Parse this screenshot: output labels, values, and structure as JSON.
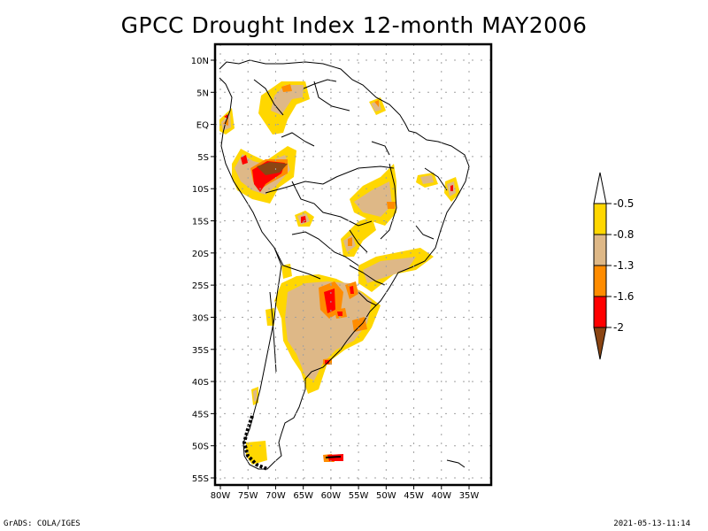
{
  "title": "GPCC Drought Index 12-month MAY2006",
  "colors": {
    "yellow": "#ffd700",
    "tan": "#deb887",
    "orange": "#ff8c00",
    "red": "#ff0000",
    "brown": "#8b4513",
    "land_outline": "#000000",
    "grid": "#a0a0a0"
  },
  "map": {
    "lon_range_west": [
      80,
      35
    ],
    "lat_range": [
      10,
      -55
    ],
    "lat_ticks": [
      {
        "value": 10,
        "label": "10N"
      },
      {
        "value": 5,
        "label": "5N"
      },
      {
        "value": 0,
        "label": "EQ"
      },
      {
        "value": -5,
        "label": "5S"
      },
      {
        "value": -10,
        "label": "10S"
      },
      {
        "value": -15,
        "label": "15S"
      },
      {
        "value": -20,
        "label": "20S"
      },
      {
        "value": -25,
        "label": "25S"
      },
      {
        "value": -30,
        "label": "30S"
      },
      {
        "value": -35,
        "label": "35S"
      },
      {
        "value": -40,
        "label": "40S"
      },
      {
        "value": -45,
        "label": "45S"
      },
      {
        "value": -50,
        "label": "50S"
      },
      {
        "value": -55,
        "label": "55S"
      }
    ],
    "lon_ticks": [
      {
        "value": 80,
        "label": "80W"
      },
      {
        "value": 75,
        "label": "75W"
      },
      {
        "value": 70,
        "label": "70W"
      },
      {
        "value": 65,
        "label": "65W"
      },
      {
        "value": 60,
        "label": "60W"
      },
      {
        "value": 55,
        "label": "55W"
      },
      {
        "value": 50,
        "label": "50W"
      },
      {
        "value": 45,
        "label": "45W"
      },
      {
        "value": 40,
        "label": "40W"
      },
      {
        "value": 35,
        "label": "35W"
      }
    ]
  },
  "legend": {
    "levels": [
      {
        "label": "-0.5",
        "color": "#ffd700"
      },
      {
        "label": "-0.8",
        "color": "#deb887"
      },
      {
        "label": "-1.3",
        "color": "#ff8c00"
      },
      {
        "label": "-1.6",
        "color": "#ff0000"
      },
      {
        "label": "-2",
        "color": "#8b4513"
      }
    ],
    "top_color": "#ffffff",
    "bottom_color": "#8b4513"
  },
  "footer": {
    "left": "GrADS: COLA/IGES",
    "right": "2021-05-13-11:14"
  }
}
